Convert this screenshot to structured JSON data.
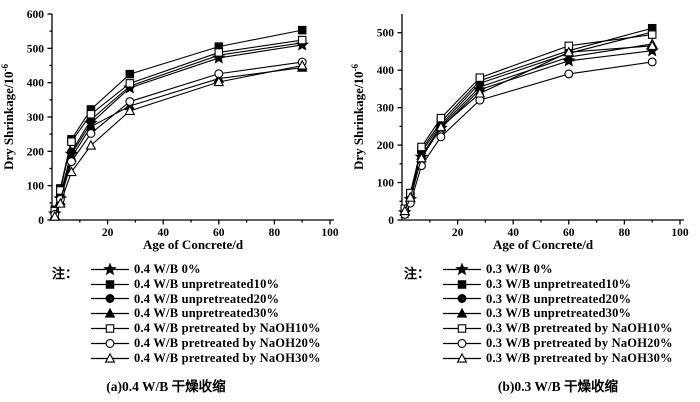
{
  "note_label": "注：",
  "chart_data": [
    {
      "type": "line",
      "title": "(a)0.4 W/B 干燥收缩",
      "xlabel": "Age of Concrete/d",
      "ylabel_base": "Dry Shrinkage/10",
      "ylabel_exp": "-6",
      "xlim": [
        0,
        100
      ],
      "ylim": [
        0,
        600
      ],
      "x_ticks": [
        20,
        40,
        60,
        80,
        100
      ],
      "y_ticks": [
        0,
        100,
        200,
        300,
        400,
        500,
        600
      ],
      "x_minor_step": 10,
      "y_minor_step": 50,
      "grid": false,
      "legend_position": "below",
      "x": [
        1,
        3,
        7,
        14,
        28,
        60,
        90
      ],
      "series": [
        {
          "name": "0.4 W/B 0%",
          "marker": "star-filled",
          "values": [
            18,
            62,
            192,
            282,
            385,
            472,
            510
          ]
        },
        {
          "name": "0.4 W/B unpretreated10%",
          "marker": "square-filled",
          "values": [
            30,
            92,
            235,
            322,
            425,
            505,
            553
          ]
        },
        {
          "name": "0.4 W/B unpretreated20%",
          "marker": "circle-filled",
          "values": [
            22,
            72,
            198,
            292,
            390,
            480,
            516
          ]
        },
        {
          "name": "0.4 W/B unpretreated30%",
          "marker": "triangle-filled",
          "values": [
            14,
            55,
            182,
            272,
            332,
            412,
            444
          ]
        },
        {
          "name": "0.4 W/B pretreated by NaOH10%",
          "marker": "square-open",
          "values": [
            26,
            86,
            228,
            308,
            398,
            488,
            524
          ]
        },
        {
          "name": "0.4 W/B pretreated by NaOH20%",
          "marker": "circle-open",
          "values": [
            16,
            60,
            170,
            252,
            345,
            426,
            460
          ]
        },
        {
          "name": "0.4 W/B pretreated by NaOH30%",
          "marker": "triangle-open",
          "values": [
            10,
            48,
            140,
            217,
            318,
            402,
            450
          ]
        }
      ]
    },
    {
      "type": "line",
      "title": "(b)0.3 W/B 干燥收缩",
      "xlabel": "Age of Concrete/d",
      "ylabel_base": "Dry Shrinkage/10",
      "ylabel_exp": "-6",
      "xlim": [
        0,
        100
      ],
      "ylim": [
        0,
        550
      ],
      "x_ticks": [
        20,
        40,
        60,
        80,
        100
      ],
      "y_ticks": [
        0,
        100,
        200,
        300,
        400,
        500
      ],
      "x_minor_step": 10,
      "y_minor_step": 50,
      "grid": false,
      "legend_position": "below",
      "x": [
        1,
        3,
        7,
        14,
        28,
        60,
        90
      ],
      "series": [
        {
          "name": "0.3 W/B 0%",
          "marker": "star-filled",
          "values": [
            20,
            55,
            168,
            245,
            348,
            425,
            452
          ]
        },
        {
          "name": "0.3 W/B unpretreated10%",
          "marker": "square-filled",
          "values": [
            28,
            68,
            188,
            262,
            372,
            452,
            512
          ]
        },
        {
          "name": "0.3 W/B unpretreated20%",
          "marker": "circle-filled",
          "values": [
            25,
            62,
            182,
            255,
            365,
            445,
            502
          ]
        },
        {
          "name": "0.3 W/B unpretreated30%",
          "marker": "triangle-filled",
          "values": [
            22,
            58,
            172,
            250,
            355,
            435,
            470
          ]
        },
        {
          "name": "0.3 W/B pretreated by NaOH10%",
          "marker": "square-open",
          "values": [
            30,
            72,
            195,
            272,
            380,
            465,
            495
          ]
        },
        {
          "name": "0.3 W/B pretreated by NaOH20%",
          "marker": "circle-open",
          "values": [
            15,
            45,
            145,
            222,
            320,
            390,
            422
          ]
        },
        {
          "name": "0.3 W/B pretreated by NaOH30%",
          "marker": "triangle-open",
          "values": [
            24,
            60,
            165,
            248,
            338,
            448,
            465
          ]
        }
      ]
    }
  ],
  "colors": {
    "ink": "#000000",
    "background": "#ffffff"
  }
}
